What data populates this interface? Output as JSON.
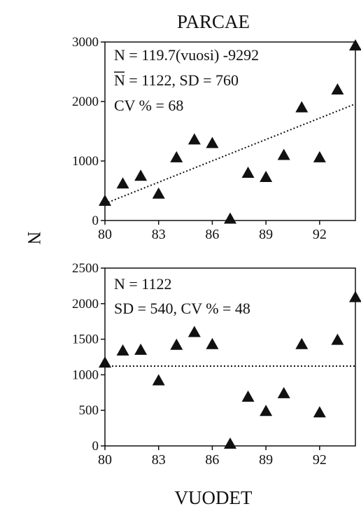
{
  "figure": {
    "title": "PARCAE",
    "ylabel": "N",
    "xlabel": "VUODET"
  },
  "chart_data": [
    {
      "type": "scatter",
      "annotations": [
        "N = 119.7(vuosi) -9292",
        "N = 1122, SD = 760",
        "CV % = 68"
      ],
      "annotation_overline_char": "N",
      "xlim": [
        80,
        94
      ],
      "ylim": [
        0,
        3000
      ],
      "x_ticks": [
        80,
        83,
        86,
        89,
        92
      ],
      "y_ticks": [
        0,
        1000,
        2000,
        3000
      ],
      "grid": false,
      "marker": "triangle",
      "series": [
        {
          "x": [
            80,
            81,
            82,
            83,
            84,
            85,
            86,
            87,
            88,
            89,
            90,
            91,
            92,
            93,
            94
          ],
          "y": [
            330,
            620,
            750,
            450,
            1060,
            1360,
            1300,
            30,
            800,
            730,
            1100,
            1900,
            1060,
            2200,
            2940
          ]
        }
      ],
      "trendline": {
        "style": "dotted",
        "slope": 119.7,
        "intercept": -9292
      }
    },
    {
      "type": "scatter",
      "annotations": [
        "N = 1122",
        "SD = 540, CV % = 48"
      ],
      "xlim": [
        80,
        94
      ],
      "ylim": [
        0,
        2500
      ],
      "x_ticks": [
        80,
        83,
        86,
        89,
        92
      ],
      "y_ticks": [
        0,
        500,
        1000,
        1500,
        2000,
        2500
      ],
      "grid": false,
      "marker": "triangle",
      "series": [
        {
          "x": [
            80,
            81,
            82,
            83,
            84,
            85,
            86,
            87,
            88,
            89,
            90,
            91,
            92,
            93,
            94
          ],
          "y": [
            1170,
            1340,
            1350,
            920,
            1420,
            1600,
            1430,
            30,
            690,
            490,
            740,
            1430,
            470,
            1490,
            2090
          ]
        }
      ],
      "hline": {
        "style": "dotted",
        "y": 1122
      }
    }
  ]
}
